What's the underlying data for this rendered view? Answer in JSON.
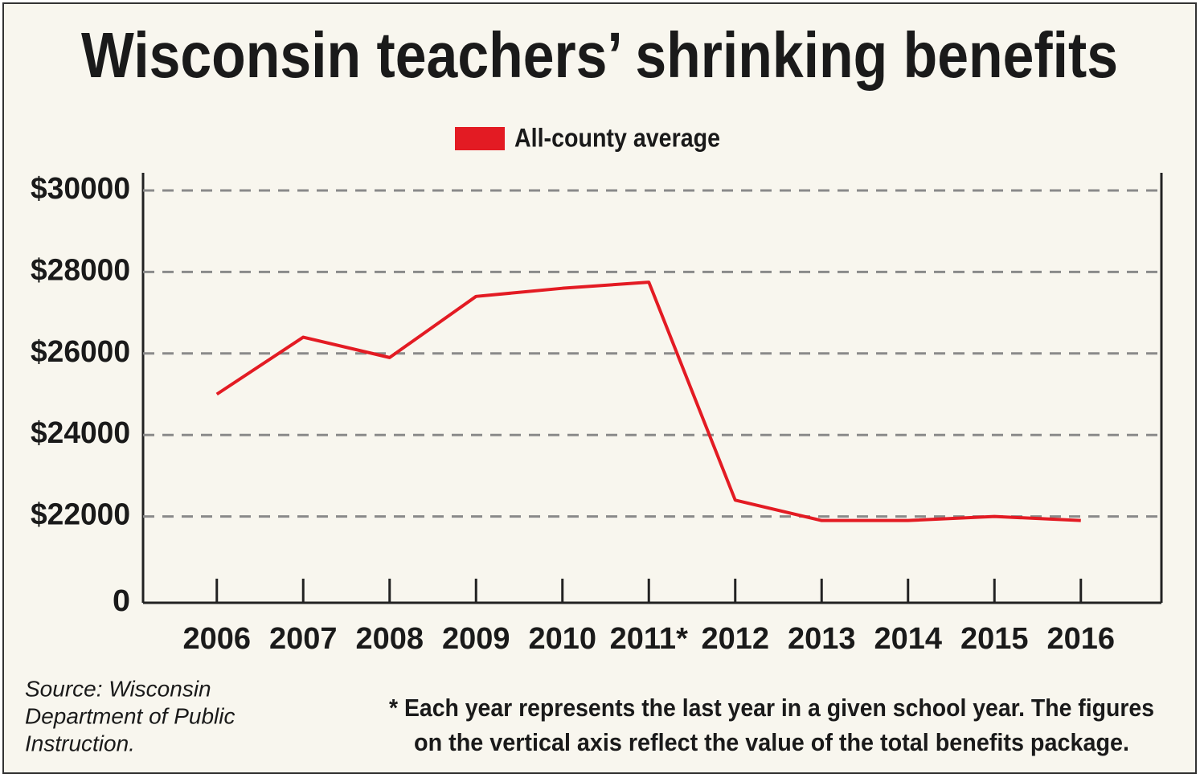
{
  "chart_data": {
    "type": "line",
    "title": "Wisconsin teachers’ shrinking benefits",
    "categories": [
      "2006",
      "2007",
      "2008",
      "2009",
      "2010",
      "2011*",
      "2012",
      "2013",
      "2014",
      "2015",
      "2016"
    ],
    "series": [
      {
        "name": "All-county average",
        "color": "#e31b23",
        "values": [
          25000,
          26400,
          25900,
          27400,
          27600,
          27750,
          22400,
          21900,
          21900,
          22000,
          21900
        ]
      }
    ],
    "ylim": [
      20000,
      30000
    ],
    "yticks": [
      0,
      {
        "value": 22000,
        "label": "$22000"
      },
      {
        "value": 24000,
        "label": "$24000"
      },
      {
        "value": 26000,
        "label": "$26000"
      },
      {
        "value": 28000,
        "label": "$28000"
      },
      {
        "value": 30000,
        "label": "$30000"
      }
    ],
    "grid": true,
    "legend": "top",
    "source": [
      "Source: Wisconsin",
      "Department of Public",
      "Instruction."
    ],
    "note": [
      "* Each year represents the last year in a given school year. The figures",
      "on the vertical axis reflect the value of the total benefits package."
    ]
  }
}
